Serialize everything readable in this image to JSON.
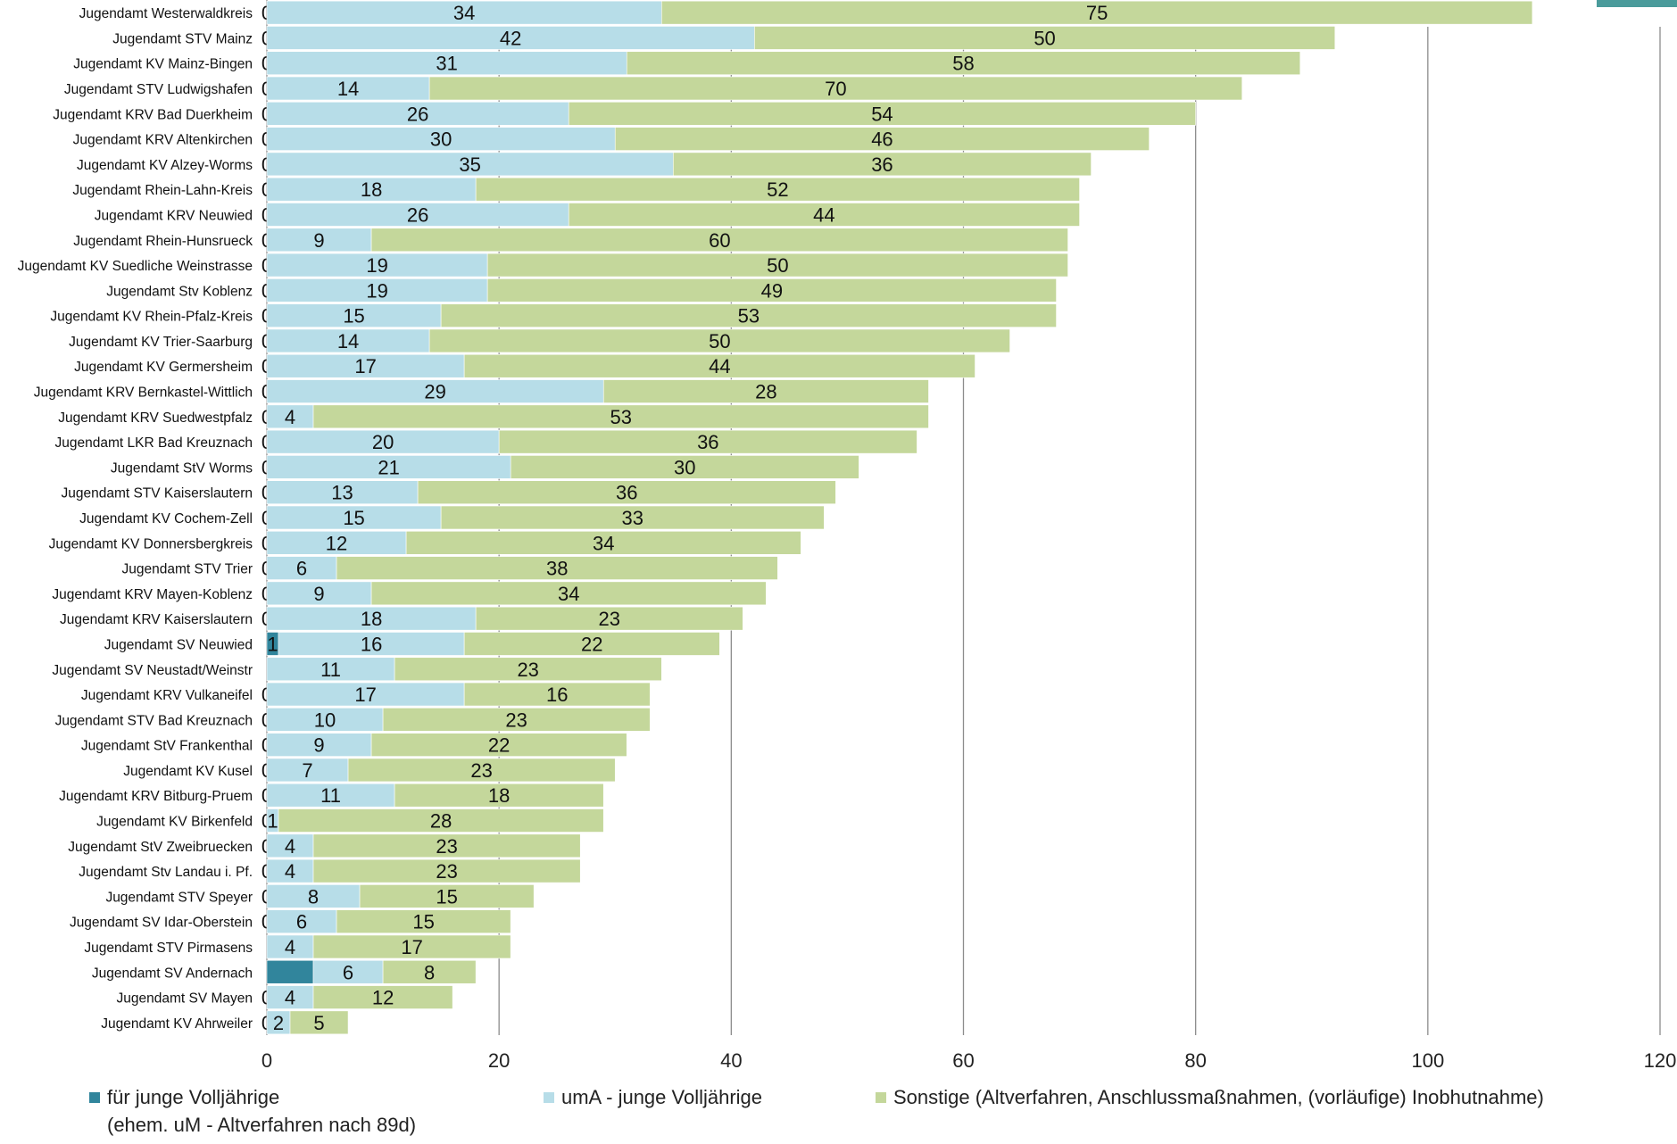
{
  "chart_data": {
    "type": "bar",
    "orientation": "horizontal",
    "stacked": true,
    "xlim": [
      0,
      120
    ],
    "x_ticks": [
      "0",
      "20",
      "40",
      "60",
      "80",
      "100",
      "120"
    ],
    "grid": "vertical",
    "legend_position": "bottom",
    "categories": [
      "Jugendamt Westerwaldkreis",
      "Jugendamt STV Mainz",
      "Jugendamt KV Mainz-Bingen",
      "Jugendamt STV Ludwigshafen",
      "Jugendamt KRV Bad Duerkheim",
      "Jugendamt KRV Altenkirchen",
      "Jugendamt KV Alzey-Worms",
      "Jugendamt Rhein-Lahn-Kreis",
      "Jugendamt KRV Neuwied",
      "Jugendamt Rhein-Hunsrueck",
      "Jugendamt KV Suedliche Weinstrasse",
      "Jugendamt Stv Koblenz",
      "Jugendamt KV Rhein-Pfalz-Kreis",
      "Jugendamt KV Trier-Saarburg",
      "Jugendamt KV Germersheim",
      "Jugendamt KRV Bernkastel-Wittlich",
      "Jugendamt KRV Suedwestpfalz",
      "Jugendamt LKR Bad Kreuznach",
      "Jugendamt StV Worms",
      "Jugendamt STV Kaiserslautern",
      "Jugendamt KV Cochem-Zell",
      "Jugendamt KV Donnersbergkreis",
      "Jugendamt STV Trier",
      "Jugendamt KRV Mayen-Koblenz",
      "Jugendamt KRV Kaiserslautern",
      "Jugendamt SV Neuwied",
      "Jugendamt SV Neustadt/Weinstr",
      "Jugendamt KRV Vulkaneifel",
      "Jugendamt STV Bad Kreuznach",
      "Jugendamt StV Frankenthal",
      "Jugendamt KV Kusel",
      "Jugendamt KRV Bitburg-Pruem",
      "Jugendamt KV Birkenfeld",
      "Jugendamt StV Zweibruecken",
      "Jugendamt Stv Landau i. Pf.",
      "Jugendamt STV Speyer",
      "Jugendamt SV Idar-Oberstein",
      "Jugendamt STV Pirmasens",
      "Jugendamt SV Andernach",
      "Jugendamt SV Mayen",
      "Jugendamt KV Ahrweiler"
    ],
    "series": [
      {
        "name": "für junge Volljährige\n(ehem. uM - Altverfahren nach 89d)",
        "color": "#31859c",
        "values": [
          0,
          0,
          0,
          0,
          0,
          0,
          0,
          0,
          0,
          0,
          0,
          0,
          0,
          0,
          0,
          0,
          0,
          0,
          0,
          0,
          0,
          0,
          0,
          0,
          0,
          1,
          null,
          0,
          0,
          0,
          0,
          0,
          0,
          0,
          0,
          0,
          0,
          null,
          4,
          0,
          0
        ],
        "labels": [
          "0",
          "0",
          "0",
          "0",
          "0",
          "0",
          "0",
          "0",
          "0",
          "0",
          "0",
          "0",
          "0",
          "0",
          "0",
          "0",
          "0",
          "0",
          "0",
          "0",
          "0",
          "0",
          "0",
          "0",
          "0",
          "1",
          "",
          "0",
          "0",
          "0",
          "0",
          "0",
          "0",
          "0",
          "0",
          "0",
          "0",
          "",
          "",
          "0",
          "0"
        ]
      },
      {
        "name": "umA - junge Volljährige",
        "color": "#b7dde8",
        "values": [
          34,
          42,
          31,
          14,
          26,
          30,
          35,
          18,
          26,
          9,
          19,
          19,
          15,
          14,
          17,
          29,
          4,
          20,
          21,
          13,
          15,
          12,
          6,
          9,
          18,
          16,
          11,
          17,
          10,
          9,
          7,
          11,
          1,
          4,
          4,
          8,
          6,
          4,
          6,
          4,
          2
        ],
        "labels": [
          "34",
          "42",
          "31",
          "14",
          "26",
          "30",
          "35",
          "18",
          "26",
          "9",
          "19",
          "19",
          "15",
          "14",
          "17",
          "29",
          "4",
          "20",
          "21",
          "13",
          "15",
          "12",
          "6",
          "9",
          "18",
          "16",
          "11",
          "17",
          "10",
          "9",
          "7",
          "11",
          "1",
          "4",
          "4",
          "8",
          "6",
          "4",
          "6",
          "4",
          "2"
        ]
      },
      {
        "name": "Sonstige (Altverfahren, Anschlussmaßnahmen, (vorläufige) Inobhutnahme)",
        "color": "#c4d79b",
        "values": [
          75,
          50,
          58,
          70,
          54,
          46,
          36,
          52,
          44,
          60,
          50,
          49,
          53,
          50,
          44,
          28,
          53,
          36,
          30,
          36,
          33,
          34,
          38,
          34,
          23,
          22,
          23,
          16,
          23,
          22,
          23,
          18,
          28,
          23,
          23,
          15,
          15,
          17,
          8,
          12,
          5
        ],
        "labels": [
          "75",
          "50",
          "58",
          "70",
          "54",
          "46",
          "36",
          "52",
          "44",
          "60",
          "50",
          "49",
          "53",
          "50",
          "44",
          "28",
          "53",
          "36",
          "30",
          "36",
          "33",
          "34",
          "38",
          "34",
          "23",
          "22",
          "23",
          "16",
          "23",
          "22",
          "23",
          "18",
          "28",
          "23",
          "23",
          "15",
          "15",
          "17",
          "8",
          "12",
          "5"
        ]
      }
    ]
  }
}
